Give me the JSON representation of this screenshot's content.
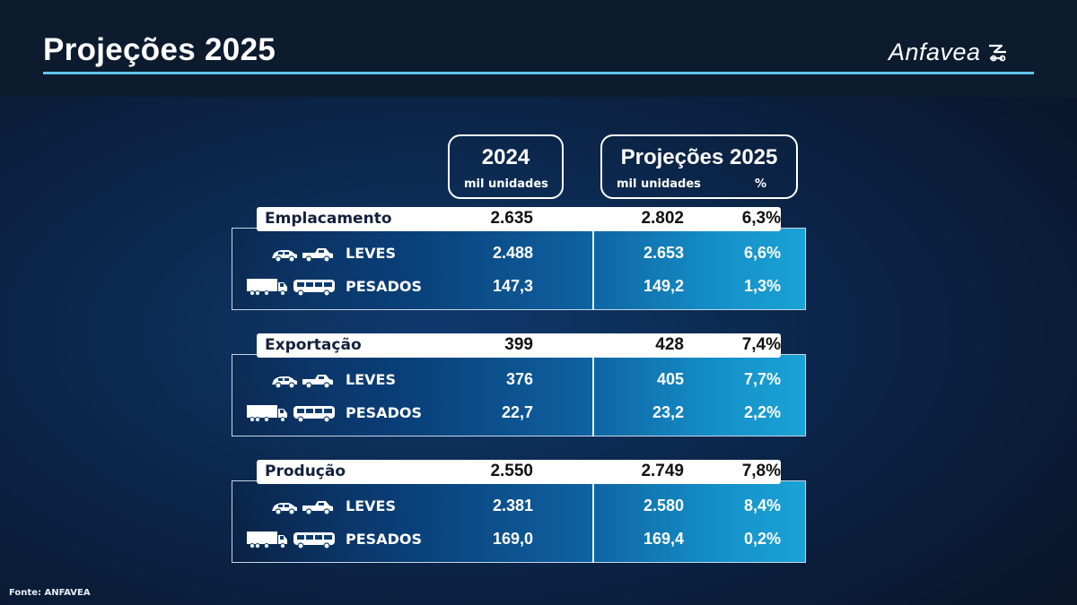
{
  "title": "Projeções 2025",
  "logo_text": "Anfavea",
  "source": "Fonte: ANFAVEA",
  "head_2024": {
    "year": "2024",
    "unit": "mil unidades"
  },
  "head_2025": {
    "year": "Projeções 2025",
    "unit": "mil unidades",
    "pct": "%"
  },
  "sections": [
    {
      "label": "Emplacamento",
      "v2024": "2.635",
      "v2025": "2.802",
      "pct": "6,3%",
      "rows": [
        {
          "label": "LEVES",
          "v2024": "2.488",
          "v2025": "2.653",
          "pct": "6,6%",
          "icon": "car-pickup-icon"
        },
        {
          "label": "PESADOS",
          "v2024": "147,3",
          "v2025": "149,2",
          "pct": "1,3%",
          "icon": "truck-bus-icon"
        }
      ]
    },
    {
      "label": "Exportação",
      "v2024": "399",
      "v2025": "428",
      "pct": "7,4%",
      "rows": [
        {
          "label": "LEVES",
          "v2024": "376",
          "v2025": "405",
          "pct": "7,7%",
          "icon": "car-pickup-icon"
        },
        {
          "label": "PESADOS",
          "v2024": "22,7",
          "v2025": "23,2",
          "pct": "2,2%",
          "icon": "truck-bus-icon"
        }
      ]
    },
    {
      "label": "Produção",
      "v2024": "2.550",
      "v2025": "2.749",
      "pct": "7,8%",
      "rows": [
        {
          "label": "LEVES",
          "v2024": "2.381",
          "v2025": "2.580",
          "pct": "8,4%",
          "icon": "car-pickup-icon"
        },
        {
          "label": "PESADOS",
          "v2024": "169,0",
          "v2025": "169,4",
          "pct": "0,2%",
          "icon": "truck-bus-icon"
        }
      ]
    }
  ]
}
